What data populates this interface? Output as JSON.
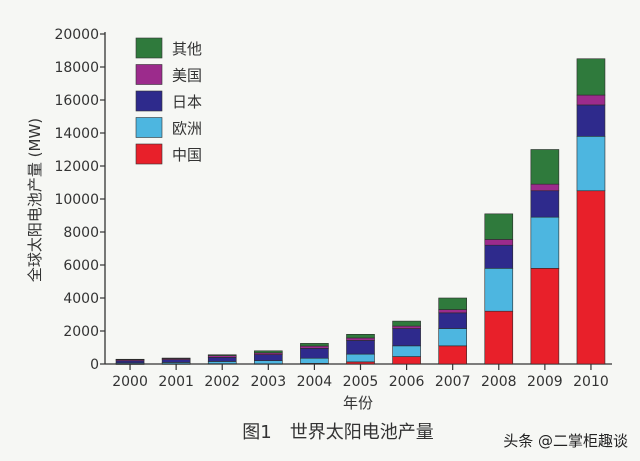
{
  "chart_data": {
    "type": "bar",
    "stacked": true,
    "categories": [
      "2000",
      "2001",
      "2002",
      "2003",
      "2004",
      "2005",
      "2006",
      "2007",
      "2008",
      "2009",
      "2010"
    ],
    "series": [
      {
        "name": "中国",
        "color": "#e8202a",
        "values": [
          3,
          10,
          20,
          15,
          40,
          130,
          450,
          1100,
          3200,
          5800,
          10500
        ]
      },
      {
        "name": "欧洲",
        "color": "#4db6e0",
        "values": [
          60,
          85,
          135,
          190,
          310,
          470,
          650,
          1050,
          2600,
          3100,
          3300
        ]
      },
      {
        "name": "日本",
        "color": "#2e2a8c",
        "values": [
          130,
          170,
          250,
          365,
          600,
          830,
          1050,
          950,
          1400,
          1600,
          1900
        ]
      },
      {
        "name": "美国",
        "color": "#9c2b8c",
        "values": [
          75,
          75,
          100,
          105,
          140,
          150,
          150,
          200,
          350,
          400,
          600
        ]
      },
      {
        "name": "其他",
        "color": "#2f7a3c",
        "values": [
          20,
          20,
          55,
          125,
          160,
          220,
          300,
          700,
          1550,
          2100,
          2200
        ]
      }
    ],
    "yticks": [
      0,
      2000,
      4000,
      6000,
      8000,
      10000,
      12000,
      14000,
      16000,
      18000,
      20000
    ],
    "ylim": [
      0,
      20000
    ],
    "xlabel": "年份",
    "ylabel": "全球太阳电池产量 (MW)",
    "legend_position": "top-left",
    "grid": false
  },
  "caption": "图1　世界太阳电池产量",
  "watermark": "头条 @二掌柜趣谈"
}
